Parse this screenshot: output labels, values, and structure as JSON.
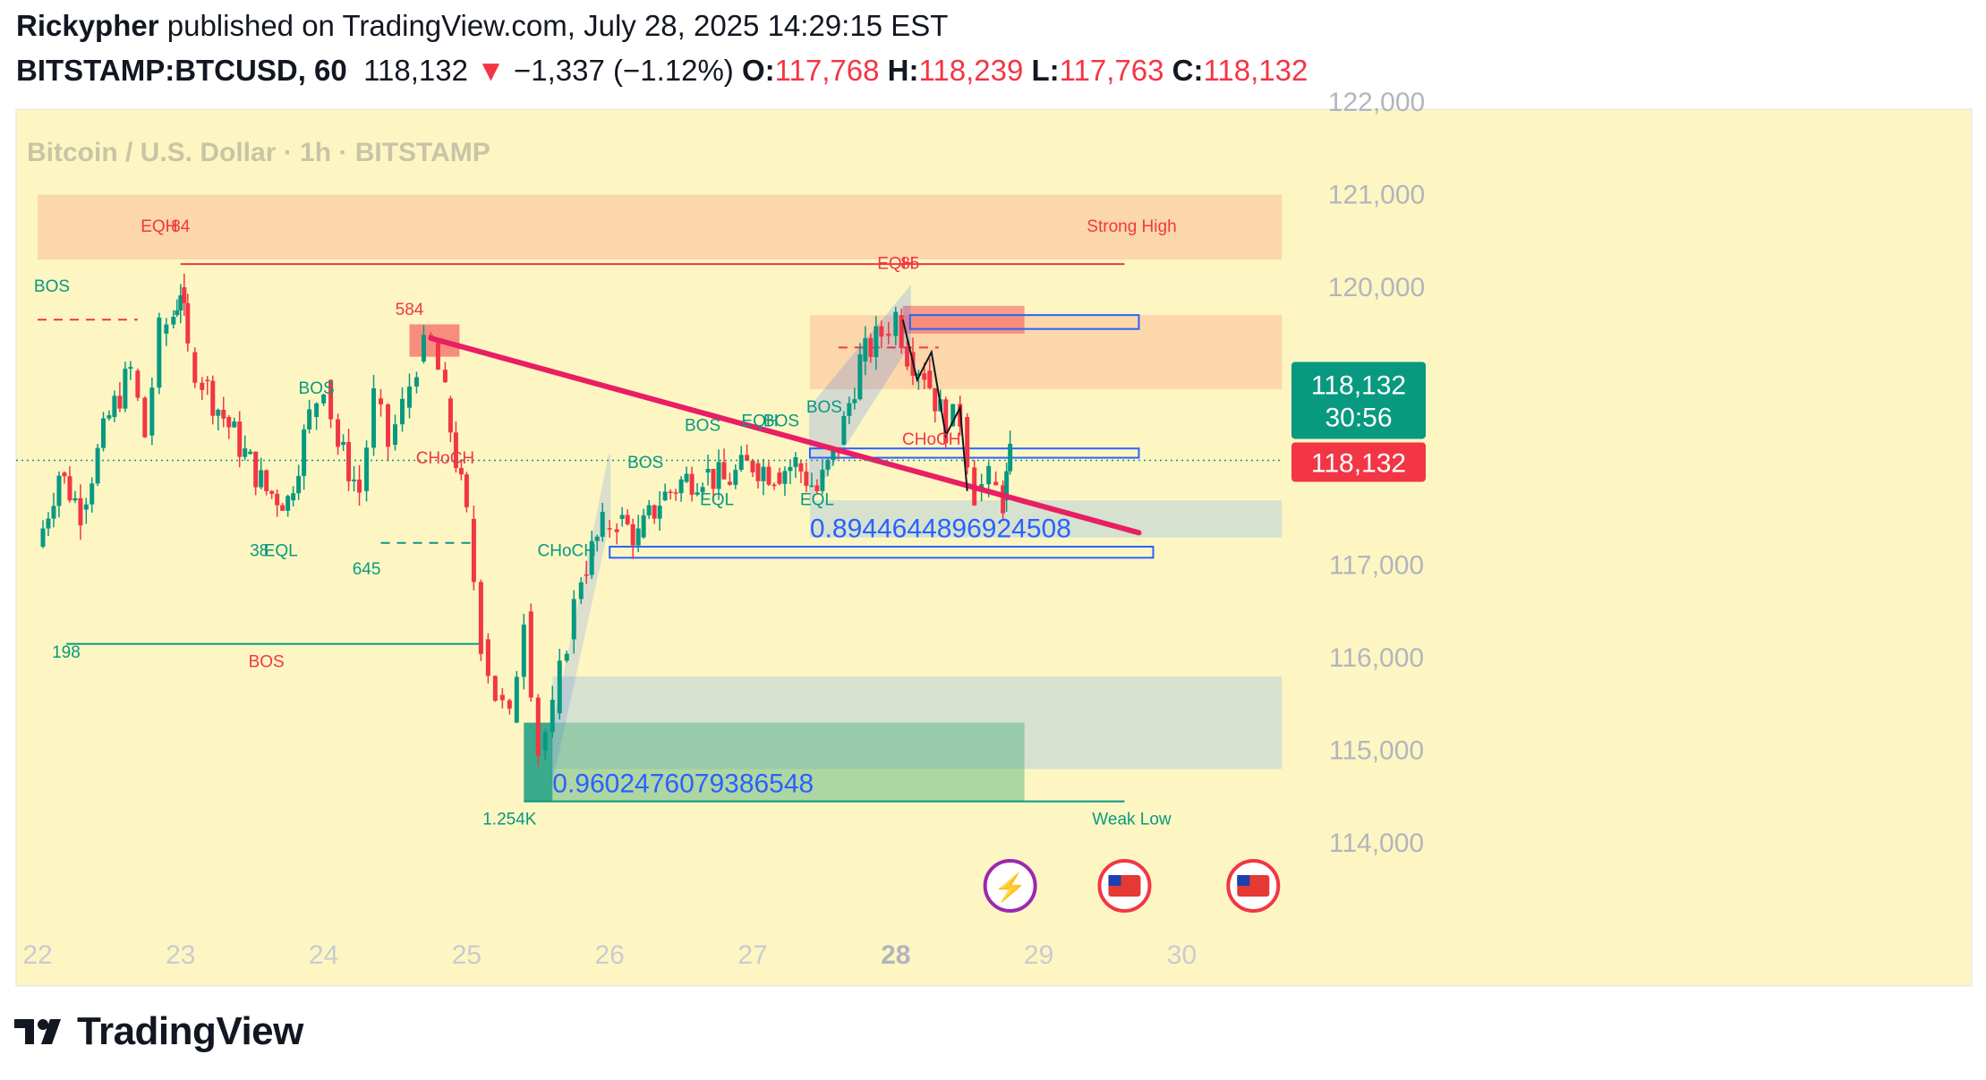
{
  "header": {
    "author": "Rickypher",
    "published_text": "published on TradingView.com, July 28, 2025 14:29:15 EST",
    "symbol": "BITSTAMP:BTCUSD, 60",
    "last": "118,132",
    "change_arrow": "▼",
    "change": "−1,337 (−1.12%)",
    "o_label": "O:",
    "o": "117,768",
    "h_label": "H:",
    "h": "118,239",
    "l_label": "L:",
    "l": "117,763",
    "c_label": "C:",
    "c": "118,132"
  },
  "footer": {
    "brand": "TradingView",
    "logo_icon": "tradingview-logo-icon"
  },
  "colors": {
    "background": "#fdf6c3",
    "up": "#089981",
    "down": "#f23645",
    "trendline": "#e91e63",
    "channel": "#2962ff",
    "price_label": "#089981",
    "last_label": "#f23645"
  },
  "chart_data": {
    "type": "candlestick",
    "title": "Bitcoin / U.S. Dollar · 1h · BITSTAMP",
    "ylim": [
      113500,
      122000
    ],
    "xlim": [
      22,
      31
    ],
    "y_ticks": [
      "122,000",
      "121,000",
      "120,000",
      "117,000",
      "116,000",
      "115,000",
      "114,000"
    ],
    "x_ticks": [
      {
        "label": "22",
        "x": 22
      },
      {
        "label": "23",
        "x": 23
      },
      {
        "label": "24",
        "x": 24
      },
      {
        "label": "25",
        "x": 25
      },
      {
        "label": "26",
        "x": 26
      },
      {
        "label": "27",
        "x": 27
      },
      {
        "label": "28",
        "x": 28,
        "bold": true
      },
      {
        "label": "29",
        "x": 29
      },
      {
        "label": "30",
        "x": 30
      }
    ],
    "last_price_label": {
      "price": "118,132",
      "countdown": "30:56",
      "value": 118132
    },
    "last_price_label2": "118,132",
    "price_path": [
      [
        22.0,
        117200
      ],
      [
        22.15,
        118000
      ],
      [
        22.3,
        117600
      ],
      [
        22.5,
        118600
      ],
      [
        22.65,
        119100
      ],
      [
        22.75,
        118400
      ],
      [
        22.85,
        119500
      ],
      [
        22.95,
        119700
      ],
      [
        23.0,
        120000
      ],
      [
        23.05,
        119300
      ],
      [
        23.15,
        119000
      ],
      [
        23.3,
        118600
      ],
      [
        23.45,
        118200
      ],
      [
        23.6,
        117800
      ],
      [
        23.75,
        117700
      ],
      [
        23.9,
        118600
      ],
      [
        24.0,
        119000
      ],
      [
        24.1,
        118300
      ],
      [
        24.25,
        117800
      ],
      [
        24.35,
        118800
      ],
      [
        24.45,
        118300
      ],
      [
        24.55,
        118700
      ],
      [
        24.65,
        119200
      ],
      [
        24.75,
        119400
      ],
      [
        24.85,
        118800
      ],
      [
        25.0,
        117500
      ],
      [
        25.1,
        116200
      ],
      [
        25.2,
        115600
      ],
      [
        25.3,
        115300
      ],
      [
        25.4,
        116500
      ],
      [
        25.5,
        115000
      ],
      [
        25.6,
        115400
      ],
      [
        25.7,
        116200
      ],
      [
        25.8,
        116900
      ],
      [
        25.95,
        117400
      ],
      [
        26.05,
        117500
      ],
      [
        26.2,
        117300
      ],
      [
        26.35,
        117700
      ],
      [
        26.5,
        117900
      ],
      [
        26.65,
        118000
      ],
      [
        26.8,
        117900
      ],
      [
        27.0,
        118100
      ],
      [
        27.15,
        118000
      ],
      [
        27.3,
        118100
      ],
      [
        27.45,
        117800
      ],
      [
        27.6,
        118300
      ],
      [
        27.75,
        119200
      ],
      [
        27.9,
        119500
      ],
      [
        28.0,
        119700
      ],
      [
        28.08,
        119300
      ],
      [
        28.2,
        119100
      ],
      [
        28.35,
        118500
      ],
      [
        28.45,
        118600
      ],
      [
        28.55,
        117800
      ],
      [
        28.65,
        117900
      ],
      [
        28.75,
        117700
      ],
      [
        28.8,
        118132
      ]
    ],
    "zones": [
      {
        "label": "Strong High",
        "x0": 22,
        "x1": 30.7,
        "y0": 120300,
        "y1": 121000,
        "color": "#fbd5a8"
      },
      {
        "label": "",
        "x0": 27.4,
        "x1": 30.7,
        "y0": 118900,
        "y1": 119700,
        "color": "#fbd5a8"
      },
      {
        "label": "",
        "x0": 27.4,
        "x1": 30.7,
        "y0": 117300,
        "y1": 117700,
        "color": "#d4e0d0"
      },
      {
        "label": "",
        "x0": 25.6,
        "x1": 30.7,
        "y0": 114800,
        "y1": 115800,
        "color": "#d4e0d0"
      }
    ],
    "annotations": [
      {
        "text": "BOS",
        "x": 22.1,
        "y": 119950,
        "color": "#089981"
      },
      {
        "text": "EQH",
        "x": 22.85,
        "y": 120600,
        "color": "#f23645"
      },
      {
        "text": "84",
        "x": 23.0,
        "y": 120600,
        "color": "#f23645"
      },
      {
        "text": "198",
        "x": 22.2,
        "y": 116000,
        "color": "#089981"
      },
      {
        "text": "BOS",
        "x": 23.6,
        "y": 115900,
        "color": "#f23645"
      },
      {
        "text": "BOS",
        "x": 23.95,
        "y": 118850,
        "color": "#089981"
      },
      {
        "text": "38",
        "x": 23.55,
        "y": 117100,
        "color": "#089981"
      },
      {
        "text": "EQL",
        "x": 23.7,
        "y": 117100,
        "color": "#089981"
      },
      {
        "text": "645",
        "x": 24.3,
        "y": 116900,
        "color": "#089981"
      },
      {
        "text": "584",
        "x": 24.6,
        "y": 119700,
        "color": "#f23645"
      },
      {
        "text": "CHoCH",
        "x": 24.85,
        "y": 118100,
        "color": "#f23645"
      },
      {
        "text": "1.254K",
        "x": 25.3,
        "y": 114200,
        "color": "#089981"
      },
      {
        "text": "CHoCH",
        "x": 25.7,
        "y": 117100,
        "color": "#089981"
      },
      {
        "text": "BOS",
        "x": 26.25,
        "y": 118050,
        "color": "#089981"
      },
      {
        "text": "EQL",
        "x": 26.75,
        "y": 117650,
        "color": "#089981"
      },
      {
        "text": "BOS",
        "x": 26.65,
        "y": 118450,
        "color": "#089981"
      },
      {
        "text": "EQH",
        "x": 27.05,
        "y": 118500,
        "color": "#089981"
      },
      {
        "text": "BOS",
        "x": 27.2,
        "y": 118500,
        "color": "#089981"
      },
      {
        "text": "BOS",
        "x": 27.5,
        "y": 118650,
        "color": "#089981"
      },
      {
        "text": "EQL",
        "x": 27.45,
        "y": 117650,
        "color": "#089981"
      },
      {
        "text": "EQH",
        "x": 28.0,
        "y": 120200,
        "color": "#f23645"
      },
      {
        "text": "85",
        "x": 28.1,
        "y": 120200,
        "color": "#f23645"
      },
      {
        "text": "CHoCH",
        "x": 28.25,
        "y": 118300,
        "color": "#f23645"
      },
      {
        "text": "Strong High",
        "x": 29.65,
        "y": 120600,
        "color": "#f23645"
      },
      {
        "text": "Weak Low",
        "x": 29.65,
        "y": 114200,
        "color": "#089981"
      }
    ],
    "big_labels": [
      {
        "text": "0.8944644896924508",
        "x": 27.4,
        "y": 117300
      },
      {
        "text": "0.9602476079386548",
        "x": 25.6,
        "y": 114550
      }
    ]
  }
}
